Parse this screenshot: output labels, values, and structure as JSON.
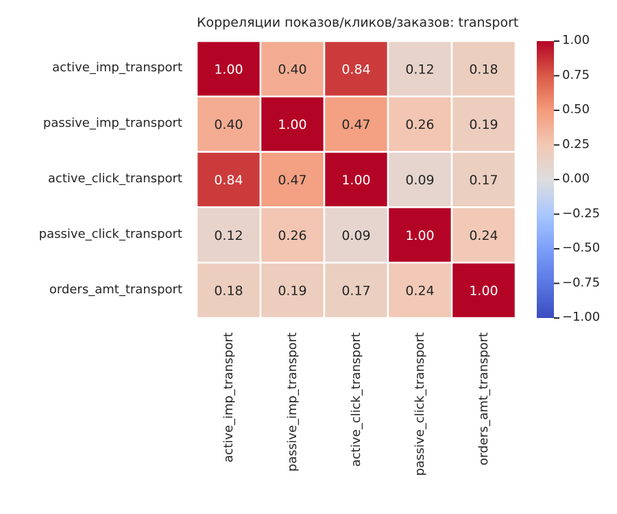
{
  "chart_data": {
    "type": "heatmap",
    "title": "Корреляции показов/кликов/заказов: transport",
    "rows": [
      "active_imp_transport",
      "passive_imp_transport",
      "active_click_transport",
      "passive_click_transport",
      "orders_amt_transport"
    ],
    "columns": [
      "active_imp_transport",
      "passive_imp_transport",
      "active_click_transport",
      "passive_click_transport",
      "orders_amt_transport"
    ],
    "values": [
      [
        1.0,
        0.4,
        0.84,
        0.12,
        0.18
      ],
      [
        0.4,
        1.0,
        0.47,
        0.26,
        0.19
      ],
      [
        0.84,
        0.47,
        1.0,
        0.09,
        0.17
      ],
      [
        0.12,
        0.26,
        0.09,
        1.0,
        0.24
      ],
      [
        0.18,
        0.19,
        0.17,
        0.24,
        1.0
      ]
    ],
    "value_format": "0.00",
    "colormap": "coolwarm",
    "vmin": -1.0,
    "vmax": 1.0,
    "colorbar_ticks": [
      "1.00",
      "0.75",
      "0.50",
      "0.25",
      "0.00",
      "−0.25",
      "−0.50",
      "−0.75",
      "−1.00"
    ],
    "colorbar_tick_values": [
      1.0,
      0.75,
      0.5,
      0.25,
      0.0,
      -0.25,
      -0.5,
      -0.75,
      -1.0
    ]
  }
}
